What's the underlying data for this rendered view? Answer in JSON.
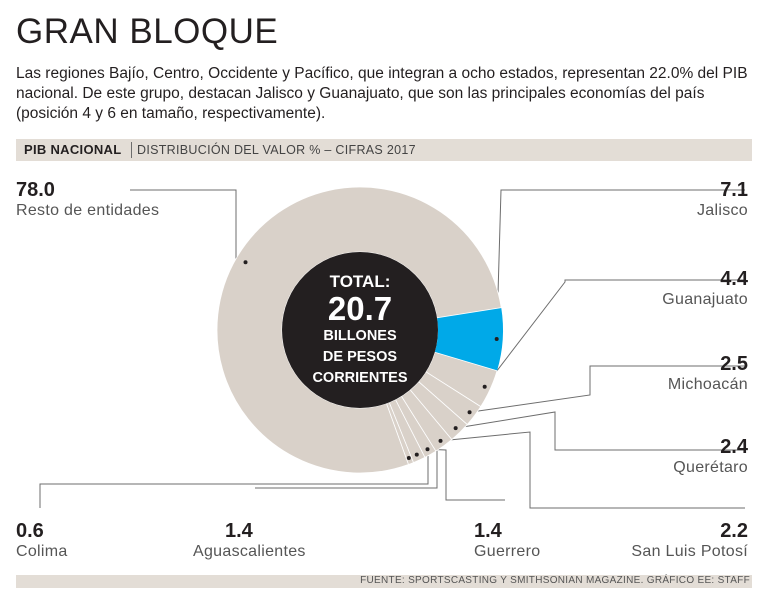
{
  "header": {
    "title": "GRAN BLOQUE",
    "intro": "Las regiones Bajío, Centro, Occidente y Pacífico, que integran a ocho estados, representan 22.0% del PIB nacional. De este grupo, destacan Jalisco y Guanajuato, que son las principales economías del país (posición 4 y 6 en tamaño, respectivamente)."
  },
  "subheader": {
    "label": "PIB NACIONAL",
    "description": "DISTRIBUCIÓN DEL VALOR % – CIFRAS 2017"
  },
  "center": {
    "line1": "TOTAL:",
    "line2": "20.7",
    "line3": "BILLONES",
    "line4": "DE PESOS",
    "line5": "CORRIENTES"
  },
  "source": "FUENTE: SPORTSCASTING Y SMITHSONIAN MAGAZINE. GRÁFICO EE: STAFF",
  "chart_data": {
    "type": "pie",
    "title": "PIB NACIONAL",
    "subtitle": "DISTRIBUCIÓN DEL VALOR % – CIFRAS 2017",
    "unit": "%",
    "categories": [
      "Jalisco",
      "Guanajuato",
      "Michoacán",
      "Querétaro",
      "San Luis Potosí",
      "Guerrero",
      "Aguascalientes",
      "Colima",
      "Resto de entidades"
    ],
    "values": [
      7.1,
      4.4,
      2.5,
      2.4,
      2.2,
      1.4,
      1.4,
      0.6,
      78.0
    ],
    "value_labels": [
      "7.1",
      "4.4",
      "2.5",
      "2.4",
      "2.2",
      "1.4",
      "1.4",
      "0.6",
      "78.0"
    ],
    "colors": [
      "#00a9e8",
      "#d9d1c9",
      "#d9d1c9",
      "#d9d1c9",
      "#d9d1c9",
      "#d9d1c9",
      "#d9d1c9",
      "#d9d1c9",
      "#d9d1c9"
    ],
    "highlight": "Jalisco",
    "center_color": "#231f20"
  }
}
